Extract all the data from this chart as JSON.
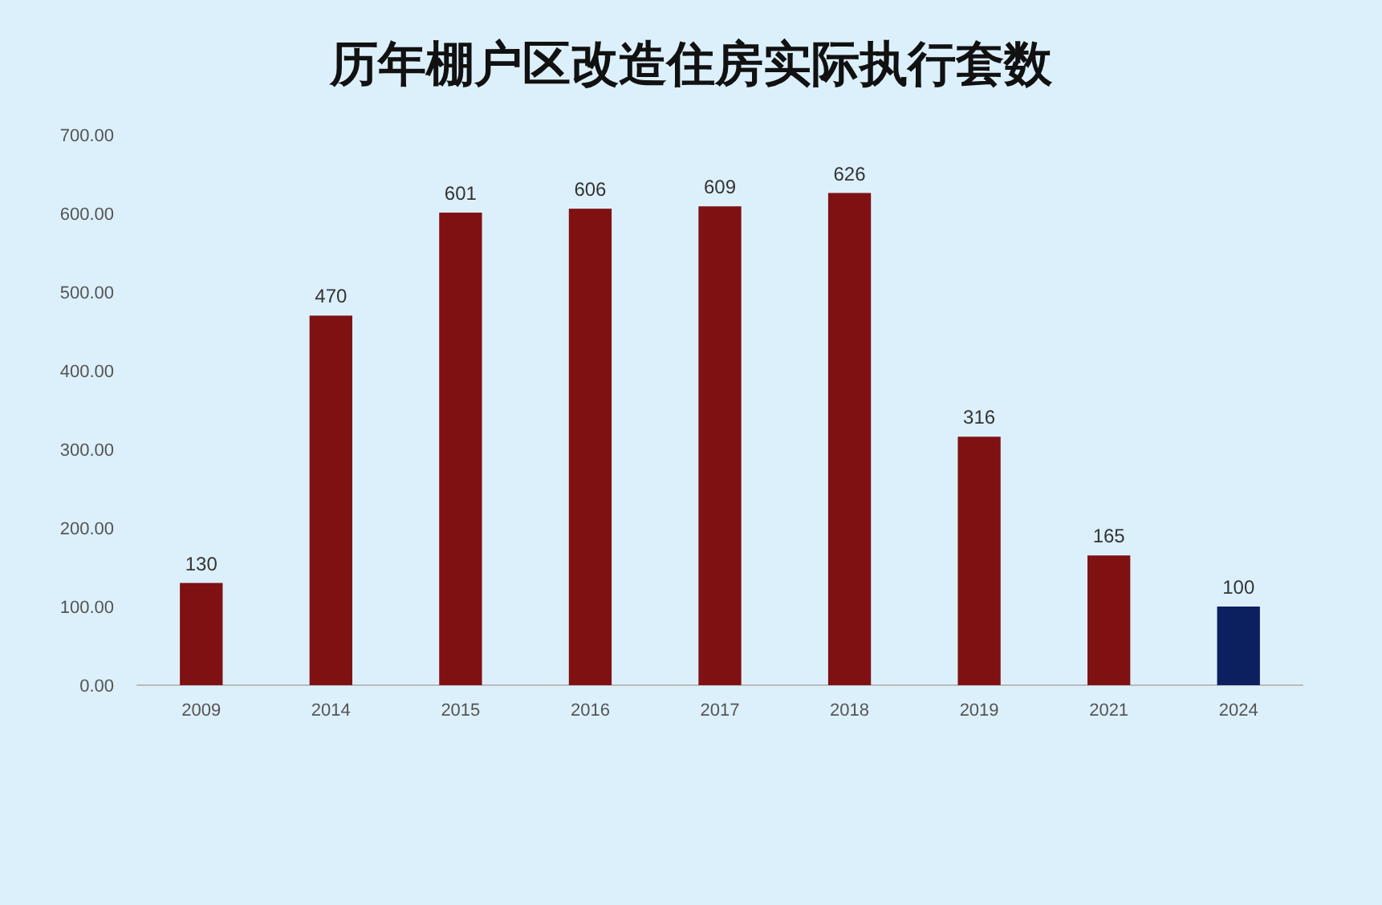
{
  "chart_data": {
    "type": "bar",
    "title": "历年棚户区改造住房实际执行套数",
    "categories": [
      "2009",
      "2014",
      "2015",
      "2016",
      "2017",
      "2018",
      "2019",
      "2021",
      "2024"
    ],
    "values": [
      130,
      470,
      601,
      606,
      609,
      626,
      316,
      165,
      100
    ],
    "colors": [
      "#7f1113",
      "#7f1113",
      "#7f1113",
      "#7f1113",
      "#7f1113",
      "#7f1113",
      "#7f1113",
      "#7f1113",
      "#0c1f5e"
    ],
    "ylim": [
      0,
      700
    ],
    "yticks": [
      {
        "value": 0,
        "label": "0.00"
      },
      {
        "value": 100,
        "label": "100.00"
      },
      {
        "value": 200,
        "label": "200.00"
      },
      {
        "value": 300,
        "label": "300.00"
      },
      {
        "value": 400,
        "label": "400.00"
      },
      {
        "value": 500,
        "label": "500.00"
      },
      {
        "value": 600,
        "label": "600.00"
      },
      {
        "value": 700,
        "label": "700.00"
      }
    ],
    "data_labels": true
  }
}
